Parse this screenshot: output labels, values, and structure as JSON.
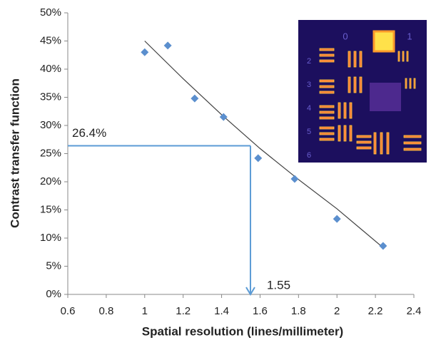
{
  "chart_data": {
    "type": "scatter",
    "x_label": "Spatial resolution (lines/millimeter)",
    "y_label": "Contrast transfer function",
    "x": [
      1.0,
      1.12,
      1.26,
      1.41,
      1.59,
      1.78,
      2.0,
      2.24
    ],
    "values": [
      43,
      44.2,
      34.8,
      31.5,
      24.2,
      20.5,
      13.4,
      8.6
    ],
    "color": "#5b8fce",
    "trendline": {
      "x": [
        1.0,
        1.2,
        1.4,
        1.6,
        1.8,
        2.0,
        2.24
      ],
      "values": [
        45,
        38.3,
        31.9,
        25.9,
        20.4,
        15.2,
        8.3
      ],
      "color": "#404040"
    },
    "annotation": {
      "x": 1.55,
      "y": 26.4,
      "x_label": "1.55",
      "y_label": "26.4%",
      "color": "#5b9bd5"
    },
    "xlim": [
      0.6,
      2.4
    ],
    "xticks": [
      0.6,
      0.8,
      1,
      1.2,
      1.4,
      1.6,
      1.8,
      2,
      2.2,
      2.4
    ],
    "ylim": [
      0,
      50
    ],
    "yticks": [
      {
        "value": 0,
        "label": "0%"
      },
      {
        "value": 5,
        "label": "5%"
      },
      {
        "value": 10,
        "label": "10%"
      },
      {
        "value": 15,
        "label": "15%"
      },
      {
        "value": 20,
        "label": "20%"
      },
      {
        "value": 25,
        "label": "25%"
      },
      {
        "value": 30,
        "label": "30%"
      },
      {
        "value": 35,
        "label": "35%"
      },
      {
        "value": 40,
        "label": "40%"
      },
      {
        "value": 45,
        "label": "45%"
      },
      {
        "value": 50,
        "label": "50%"
      }
    ],
    "inset": {
      "group_labels": [
        "0",
        "1"
      ],
      "element_labels": [
        "2",
        "3",
        "4",
        "5",
        "6"
      ]
    }
  }
}
